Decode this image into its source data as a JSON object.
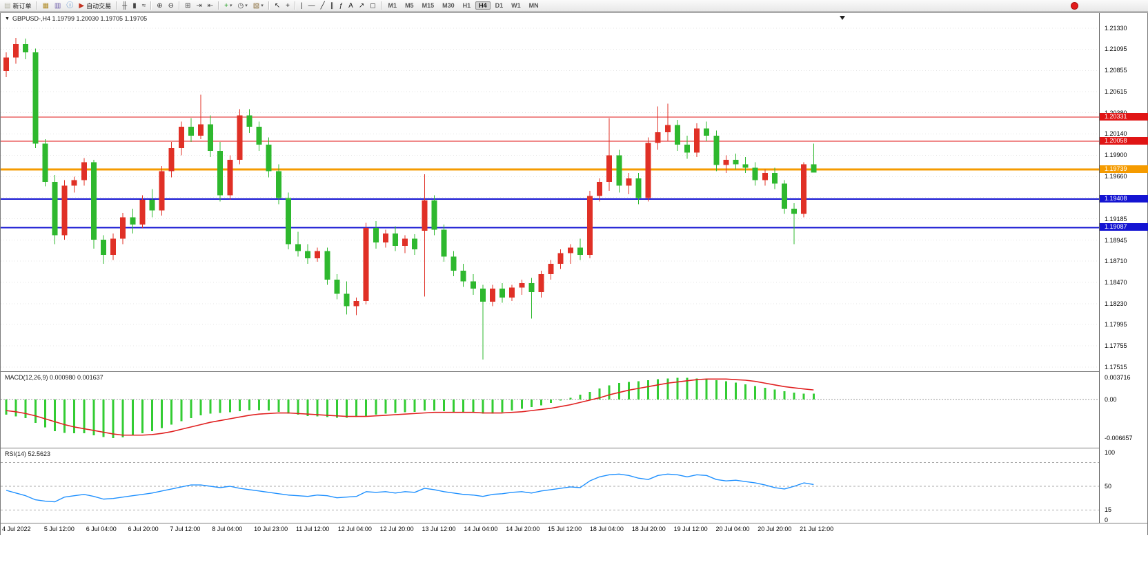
{
  "toolbar": {
    "new_order_label": "新订单",
    "autotrade_label": "自动交易",
    "items": [
      {
        "t": "btn",
        "name": "new-order-button",
        "glyph": "▤",
        "color": "#b5b5a5",
        "label_key": "new_order_label"
      },
      {
        "t": "sep"
      },
      {
        "t": "ico",
        "name": "new-chart-button",
        "glyph": "▦",
        "color": "#b08c28"
      },
      {
        "t": "ico",
        "name": "profiles-button",
        "glyph": "▥",
        "color": "#6a5aa8"
      },
      {
        "t": "ico",
        "name": "data-window-button",
        "glyph": "ⓘ",
        "color": "#2a6fc0"
      },
      {
        "t": "btn",
        "name": "autotrade-button",
        "glyph": "▶",
        "color": "#c23322",
        "label_key": "autotrade_label"
      },
      {
        "t": "sep"
      },
      {
        "t": "ico",
        "name": "bar-chart-mode-button",
        "glyph": "╫",
        "color": "#444444"
      },
      {
        "t": "ico",
        "name": "candlestick-mode-button",
        "glyph": "▮",
        "color": "#444444"
      },
      {
        "t": "ico",
        "name": "line-chart-mode-button",
        "glyph": "≈",
        "color": "#444444"
      },
      {
        "t": "sep"
      },
      {
        "t": "ico",
        "name": "zoom-in-button",
        "glyph": "⊕",
        "color": "#333333"
      },
      {
        "t": "ico",
        "name": "zoom-out-button",
        "glyph": "⊖",
        "color": "#333333"
      },
      {
        "t": "sep"
      },
      {
        "t": "ico",
        "name": "tile-windows-button",
        "glyph": "⊞",
        "color": "#444444"
      },
      {
        "t": "ico",
        "name": "auto-scroll-button",
        "glyph": "⇥",
        "color": "#444444"
      },
      {
        "t": "ico",
        "name": "chart-shift-button",
        "glyph": "⇤",
        "color": "#444444"
      },
      {
        "t": "sep"
      },
      {
        "t": "ico",
        "name": "indicators-button",
        "glyph": "+",
        "color": "#1a9c1a",
        "caret": true
      },
      {
        "t": "ico",
        "name": "periods-button",
        "glyph": "◷",
        "color": "#444444",
        "caret": true
      },
      {
        "t": "ico",
        "name": "templates-button",
        "glyph": "▧",
        "color": "#8a6d3b",
        "caret": true
      },
      {
        "t": "sep"
      },
      {
        "t": "ico",
        "name": "cursor-button",
        "glyph": "↖",
        "color": "#222222"
      },
      {
        "t": "ico",
        "name": "crosshair-button",
        "glyph": "+",
        "color": "#222222"
      },
      {
        "t": "sep"
      },
      {
        "t": "ico",
        "name": "vertical-line-button",
        "glyph": "|",
        "color": "#222222"
      },
      {
        "t": "ico",
        "name": "horizontal-line-button",
        "glyph": "—",
        "color": "#222222"
      },
      {
        "t": "ico",
        "name": "trendline-button",
        "glyph": "╱",
        "color": "#222222"
      },
      {
        "t": "ico",
        "name": "channel-button",
        "glyph": "∥",
        "color": "#222222"
      },
      {
        "t": "ico",
        "name": "fibonacci-button",
        "glyph": "ƒ",
        "color": "#222222"
      },
      {
        "t": "ico",
        "name": "text-button",
        "glyph": "A",
        "color": "#222222"
      },
      {
        "t": "ico",
        "name": "arrows-button",
        "glyph": "↗",
        "color": "#222222"
      },
      {
        "t": "ico",
        "name": "shapes-button",
        "glyph": "◻",
        "color": "#222222"
      },
      {
        "t": "sep"
      },
      {
        "t": "tf"
      }
    ],
    "timeframes": [
      "M1",
      "M5",
      "M15",
      "M30",
      "H1",
      "H4",
      "D1",
      "W1",
      "MN"
    ],
    "active_timeframe": "H4"
  },
  "chart": {
    "symbol_header": "GBPUSD-,H4  1.19799 1.20030 1.19705 1.19705",
    "price_scale": {
      "max": 1.2133,
      "min": 1.17515
    },
    "price_axis_labels": [
      "1.21330",
      "1.21095",
      "1.20855",
      "1.20615",
      "1.20380",
      "1.20140",
      "1.19900",
      "1.19660",
      "1.19425",
      "1.19185",
      "1.18945",
      "1.18710",
      "1.18470",
      "1.18230",
      "1.17995",
      "1.17755",
      "1.17515"
    ],
    "hlines": [
      {
        "price": 1.20331,
        "label": "1.20331",
        "color": "#e01515",
        "width": 1
      },
      {
        "price": 1.20058,
        "label": "1.20058",
        "color": "#e01515",
        "width": 1
      },
      {
        "price": 1.19739,
        "label": "1.19739",
        "color": "#f59b00",
        "width": 3
      },
      {
        "price": 1.19408,
        "label": "1.19408",
        "color": "#1414d2",
        "width": 2
      },
      {
        "price": 1.19087,
        "label": "1.19087",
        "color": "#1414d2",
        "width": 2
      }
    ],
    "time_axis": [
      "4 Jul 2022",
      "5 Jul 12:00",
      "6 Jul 04:00",
      "6 Jul 20:00",
      "7 Jul 12:00",
      "8 Jul 04:00",
      "10 Jul 23:00",
      "11 Jul 12:00",
      "12 Jul 04:00",
      "12 Jul 20:00",
      "13 Jul 12:00",
      "14 Jul 04:00",
      "14 Jul 20:00",
      "15 Jul 12:00",
      "18 Jul 04:00",
      "18 Jul 20:00",
      "19 Jul 12:00",
      "20 Jul 04:00",
      "20 Jul 20:00",
      "21 Jul 12:00"
    ],
    "colors": {
      "bull": "#e03026",
      "bear": "#2eb82e",
      "grid": "#e4e4e4",
      "macd_bar": "#33cc33",
      "macd_signal": "#e02020",
      "rsi_line": "#1e90ff"
    }
  },
  "chart_data": {
    "type": "candlestick",
    "symbol": "GBPUSD-",
    "timeframe": "H4",
    "last_ohlc": {
      "open": "1.19799",
      "high": "1.20030",
      "low": "1.19705",
      "close": "1.19705"
    },
    "ohlc": [
      [
        1.2085,
        1.2106,
        1.2078,
        1.21
      ],
      [
        1.21,
        1.2122,
        1.2093,
        1.2115
      ],
      [
        1.2115,
        1.21215,
        1.2098,
        1.2106
      ],
      [
        1.2106,
        1.211,
        1.1998,
        1.2003
      ],
      [
        1.2003,
        1.2008,
        1.1955,
        1.196
      ],
      [
        1.196,
        1.1968,
        1.189,
        1.19
      ],
      [
        1.19,
        1.1962,
        1.1895,
        1.1956
      ],
      [
        1.1956,
        1.1966,
        1.1948,
        1.1962
      ],
      [
        1.1962,
        1.1987,
        1.1956,
        1.1982
      ],
      [
        1.1982,
        1.1985,
        1.1885,
        1.1895
      ],
      [
        1.1895,
        1.19,
        1.1868,
        1.1878
      ],
      [
        1.1878,
        1.1902,
        1.1872,
        1.1896
      ],
      [
        1.1896,
        1.1925,
        1.189,
        1.192
      ],
      [
        1.192,
        1.193,
        1.1902,
        1.1912
      ],
      [
        1.1912,
        1.1945,
        1.1908,
        1.194
      ],
      [
        1.194,
        1.1952,
        1.192,
        1.1928
      ],
      [
        1.1928,
        1.1978,
        1.1922,
        1.1972
      ],
      [
        1.1972,
        1.2005,
        1.1965,
        1.1998
      ],
      [
        1.1998,
        1.2028,
        1.199,
        1.2022
      ],
      [
        1.2022,
        1.2032,
        1.2005,
        1.2012
      ],
      [
        1.2012,
        1.2058,
        1.2008,
        1.2025
      ],
      [
        1.2025,
        1.2035,
        1.1988,
        1.1995
      ],
      [
        1.1995,
        1.2005,
        1.1938,
        1.1945
      ],
      [
        1.1945,
        1.199,
        1.194,
        1.1985
      ],
      [
        1.1985,
        1.2042,
        1.198,
        1.2035
      ],
      [
        1.2035,
        1.2042,
        1.2015,
        1.2022
      ],
      [
        1.2022,
        1.2028,
        1.1995,
        1.2002
      ],
      [
        1.2002,
        1.201,
        1.1965,
        1.1972
      ],
      [
        1.1972,
        1.198,
        1.1935,
        1.1942
      ],
      [
        1.1942,
        1.1948,
        1.1884,
        1.189
      ],
      [
        1.189,
        1.1904,
        1.1876,
        1.1882
      ],
      [
        1.1882,
        1.189,
        1.1868,
        1.1874
      ],
      [
        1.1874,
        1.1886,
        1.187,
        1.1882
      ],
      [
        1.1882,
        1.1886,
        1.1844,
        1.185
      ],
      [
        1.185,
        1.1856,
        1.1828,
        1.1834
      ],
      [
        1.1834,
        1.1848,
        1.1811,
        1.182
      ],
      [
        1.182,
        1.183,
        1.181,
        1.1826
      ],
      [
        1.1826,
        1.1914,
        1.1822,
        1.1908
      ],
      [
        1.1908,
        1.1916,
        1.1885,
        1.1892
      ],
      [
        1.1892,
        1.1906,
        1.1886,
        1.1902
      ],
      [
        1.1902,
        1.191,
        1.1882,
        1.1888
      ],
      [
        1.1888,
        1.19,
        1.188,
        1.1896
      ],
      [
        1.1896,
        1.1901,
        1.1878,
        1.1884
      ],
      [
        1.1905,
        1.19685,
        1.1831,
        1.1939
      ],
      [
        1.1939,
        1.1945,
        1.19,
        1.1906
      ],
      [
        1.1906,
        1.1912,
        1.187,
        1.1876
      ],
      [
        1.1876,
        1.1882,
        1.1854,
        1.186
      ],
      [
        1.186,
        1.1868,
        1.1842,
        1.1848
      ],
      [
        1.1848,
        1.1856,
        1.1833,
        1.184
      ],
      [
        1.184,
        1.1844,
        1.176,
        1.1825
      ],
      [
        1.1825,
        1.1844,
        1.182,
        1.184
      ],
      [
        1.184,
        1.1846,
        1.1824,
        1.183
      ],
      [
        1.183,
        1.1844,
        1.1826,
        1.1841
      ],
      [
        1.1841,
        1.185,
        1.1833,
        1.1846
      ],
      [
        1.1846,
        1.1852,
        1.1806,
        1.1836
      ],
      [
        1.1836,
        1.186,
        1.183,
        1.1856
      ],
      [
        1.1856,
        1.1872,
        1.185,
        1.1868
      ],
      [
        1.1868,
        1.1884,
        1.1862,
        1.188
      ],
      [
        1.188,
        1.189,
        1.1868,
        1.1886
      ],
      [
        1.1886,
        1.1896,
        1.1872,
        1.1878
      ],
      [
        1.1878,
        1.195,
        1.1874,
        1.1944
      ],
      [
        1.1944,
        1.1964,
        1.1938,
        1.196
      ],
      [
        1.196,
        1.2032,
        1.195,
        1.199
      ],
      [
        1.199,
        1.1996,
        1.1948,
        1.1956
      ],
      [
        1.1956,
        1.197,
        1.1946,
        1.1964
      ],
      [
        1.1964,
        1.197,
        1.1935,
        1.1942
      ],
      [
        1.1942,
        1.201,
        1.1938,
        1.2004
      ],
      [
        1.2004,
        1.2045,
        1.1996,
        1.2016
      ],
      [
        1.2016,
        1.2048,
        1.2006,
        1.2024
      ],
      [
        1.2024,
        1.203,
        1.1995,
        1.2002
      ],
      [
        1.2002,
        1.2012,
        1.1986,
        1.1993
      ],
      [
        1.1993,
        1.2026,
        1.1988,
        1.202
      ],
      [
        1.202,
        1.2028,
        1.2006,
        1.2012
      ],
      [
        1.2012,
        1.2018,
        1.1972,
        1.1979
      ],
      [
        1.1979,
        1.199,
        1.197,
        1.1985
      ],
      [
        1.1985,
        1.1992,
        1.1974,
        1.198
      ],
      [
        1.198,
        1.1988,
        1.197,
        1.1976
      ],
      [
        1.1976,
        1.1982,
        1.1956,
        1.1962
      ],
      [
        1.1962,
        1.1974,
        1.1956,
        1.197
      ],
      [
        1.197,
        1.1976,
        1.1952,
        1.1958
      ],
      [
        1.1958,
        1.1962,
        1.1924,
        1.193
      ],
      [
        1.193,
        1.1936,
        1.189,
        1.1924
      ],
      [
        1.1924,
        1.1982,
        1.192,
        1.19799
      ],
      [
        1.19799,
        1.2003,
        1.19705,
        1.19705
      ]
    ],
    "indicators": {
      "macd": {
        "label_full": "MACD(12,26,9) 0.000980 0.001637",
        "axis_labels": [
          "0.003716",
          "0.00",
          "-0.006657"
        ],
        "values": [
          -0.0026,
          -0.0029,
          -0.0032,
          -0.004,
          -0.0048,
          -0.0054,
          -0.0057,
          -0.0058,
          -0.0058,
          -0.0061,
          -0.0064,
          -0.0066,
          -0.0065,
          -0.0062,
          -0.0058,
          -0.0054,
          -0.0049,
          -0.0043,
          -0.0037,
          -0.0032,
          -0.0027,
          -0.0024,
          -0.0023,
          -0.0022,
          -0.002,
          -0.0018,
          -0.0018,
          -0.0019,
          -0.0021,
          -0.0024,
          -0.0026,
          -0.0028,
          -0.0029,
          -0.003,
          -0.0031,
          -0.0031,
          -0.003,
          -0.0028,
          -0.0026,
          -0.0024,
          -0.0023,
          -0.0022,
          -0.0021,
          -0.0019,
          -0.0019,
          -0.002,
          -0.0022,
          -0.0023,
          -0.0023,
          -0.0024,
          -0.0024,
          -0.0022,
          -0.0019,
          -0.0016,
          -0.0013,
          -0.001,
          -0.0006,
          -0.0002,
          0.0003,
          0.0008,
          0.0013,
          0.0019,
          0.0024,
          0.0028,
          0.003,
          0.0031,
          0.0033,
          0.0035,
          0.0036,
          0.0037,
          0.0037,
          0.0036,
          0.0035,
          0.0033,
          0.0031,
          0.0029,
          0.0026,
          0.0023,
          0.002,
          0.0017,
          0.0014,
          0.0012,
          0.001,
          0.00098
        ],
        "signal": [
          -0.0019,
          -0.0021,
          -0.0024,
          -0.0028,
          -0.0033,
          -0.0038,
          -0.0043,
          -0.0047,
          -0.005,
          -0.0053,
          -0.0056,
          -0.0059,
          -0.0061,
          -0.0061,
          -0.0061,
          -0.006,
          -0.0058,
          -0.0055,
          -0.0051,
          -0.0047,
          -0.0043,
          -0.0039,
          -0.0036,
          -0.0033,
          -0.003,
          -0.0027,
          -0.0025,
          -0.0024,
          -0.0023,
          -0.0023,
          -0.0024,
          -0.0025,
          -0.0026,
          -0.0027,
          -0.0028,
          -0.0029,
          -0.0029,
          -0.0029,
          -0.0028,
          -0.0027,
          -0.0026,
          -0.0025,
          -0.0024,
          -0.0023,
          -0.0022,
          -0.0022,
          -0.0022,
          -0.0022,
          -0.0022,
          -0.0023,
          -0.0023,
          -0.0023,
          -0.0022,
          -0.0021,
          -0.0019,
          -0.0017,
          -0.0015,
          -0.0012,
          -0.0009,
          -0.0005,
          -0.0001,
          0.0003,
          0.0008,
          0.0012,
          0.0016,
          0.0019,
          0.0022,
          0.0025,
          0.0028,
          0.003,
          0.0032,
          0.0034,
          0.0035,
          0.0035,
          0.0035,
          0.0034,
          0.0033,
          0.0031,
          0.0028,
          0.0025,
          0.0022,
          0.002,
          0.0018,
          0.001637
        ]
      },
      "rsi": {
        "label_full": "RSI(14) 52.5623",
        "axis_labels": [
          "100",
          "50",
          "15",
          "0"
        ],
        "levels": [
          85,
          50,
          15
        ],
        "values": [
          44,
          40,
          36,
          30,
          28,
          27,
          34,
          36,
          38,
          35,
          31,
          32,
          34,
          36,
          38,
          40,
          43,
          46,
          49,
          52,
          52,
          50,
          48,
          50,
          47,
          45,
          43,
          41,
          39,
          37,
          36,
          35,
          37,
          36,
          33,
          34,
          35,
          42,
          41,
          42,
          40,
          42,
          41,
          47,
          45,
          42,
          40,
          38,
          37,
          35,
          38,
          39,
          41,
          42,
          40,
          43,
          45,
          47,
          49,
          48,
          58,
          64,
          67,
          68,
          66,
          62,
          60,
          66,
          68,
          67,
          64,
          67,
          66,
          60,
          58,
          59,
          57,
          55,
          52,
          48,
          46,
          50,
          55,
          52.56
        ]
      }
    }
  }
}
